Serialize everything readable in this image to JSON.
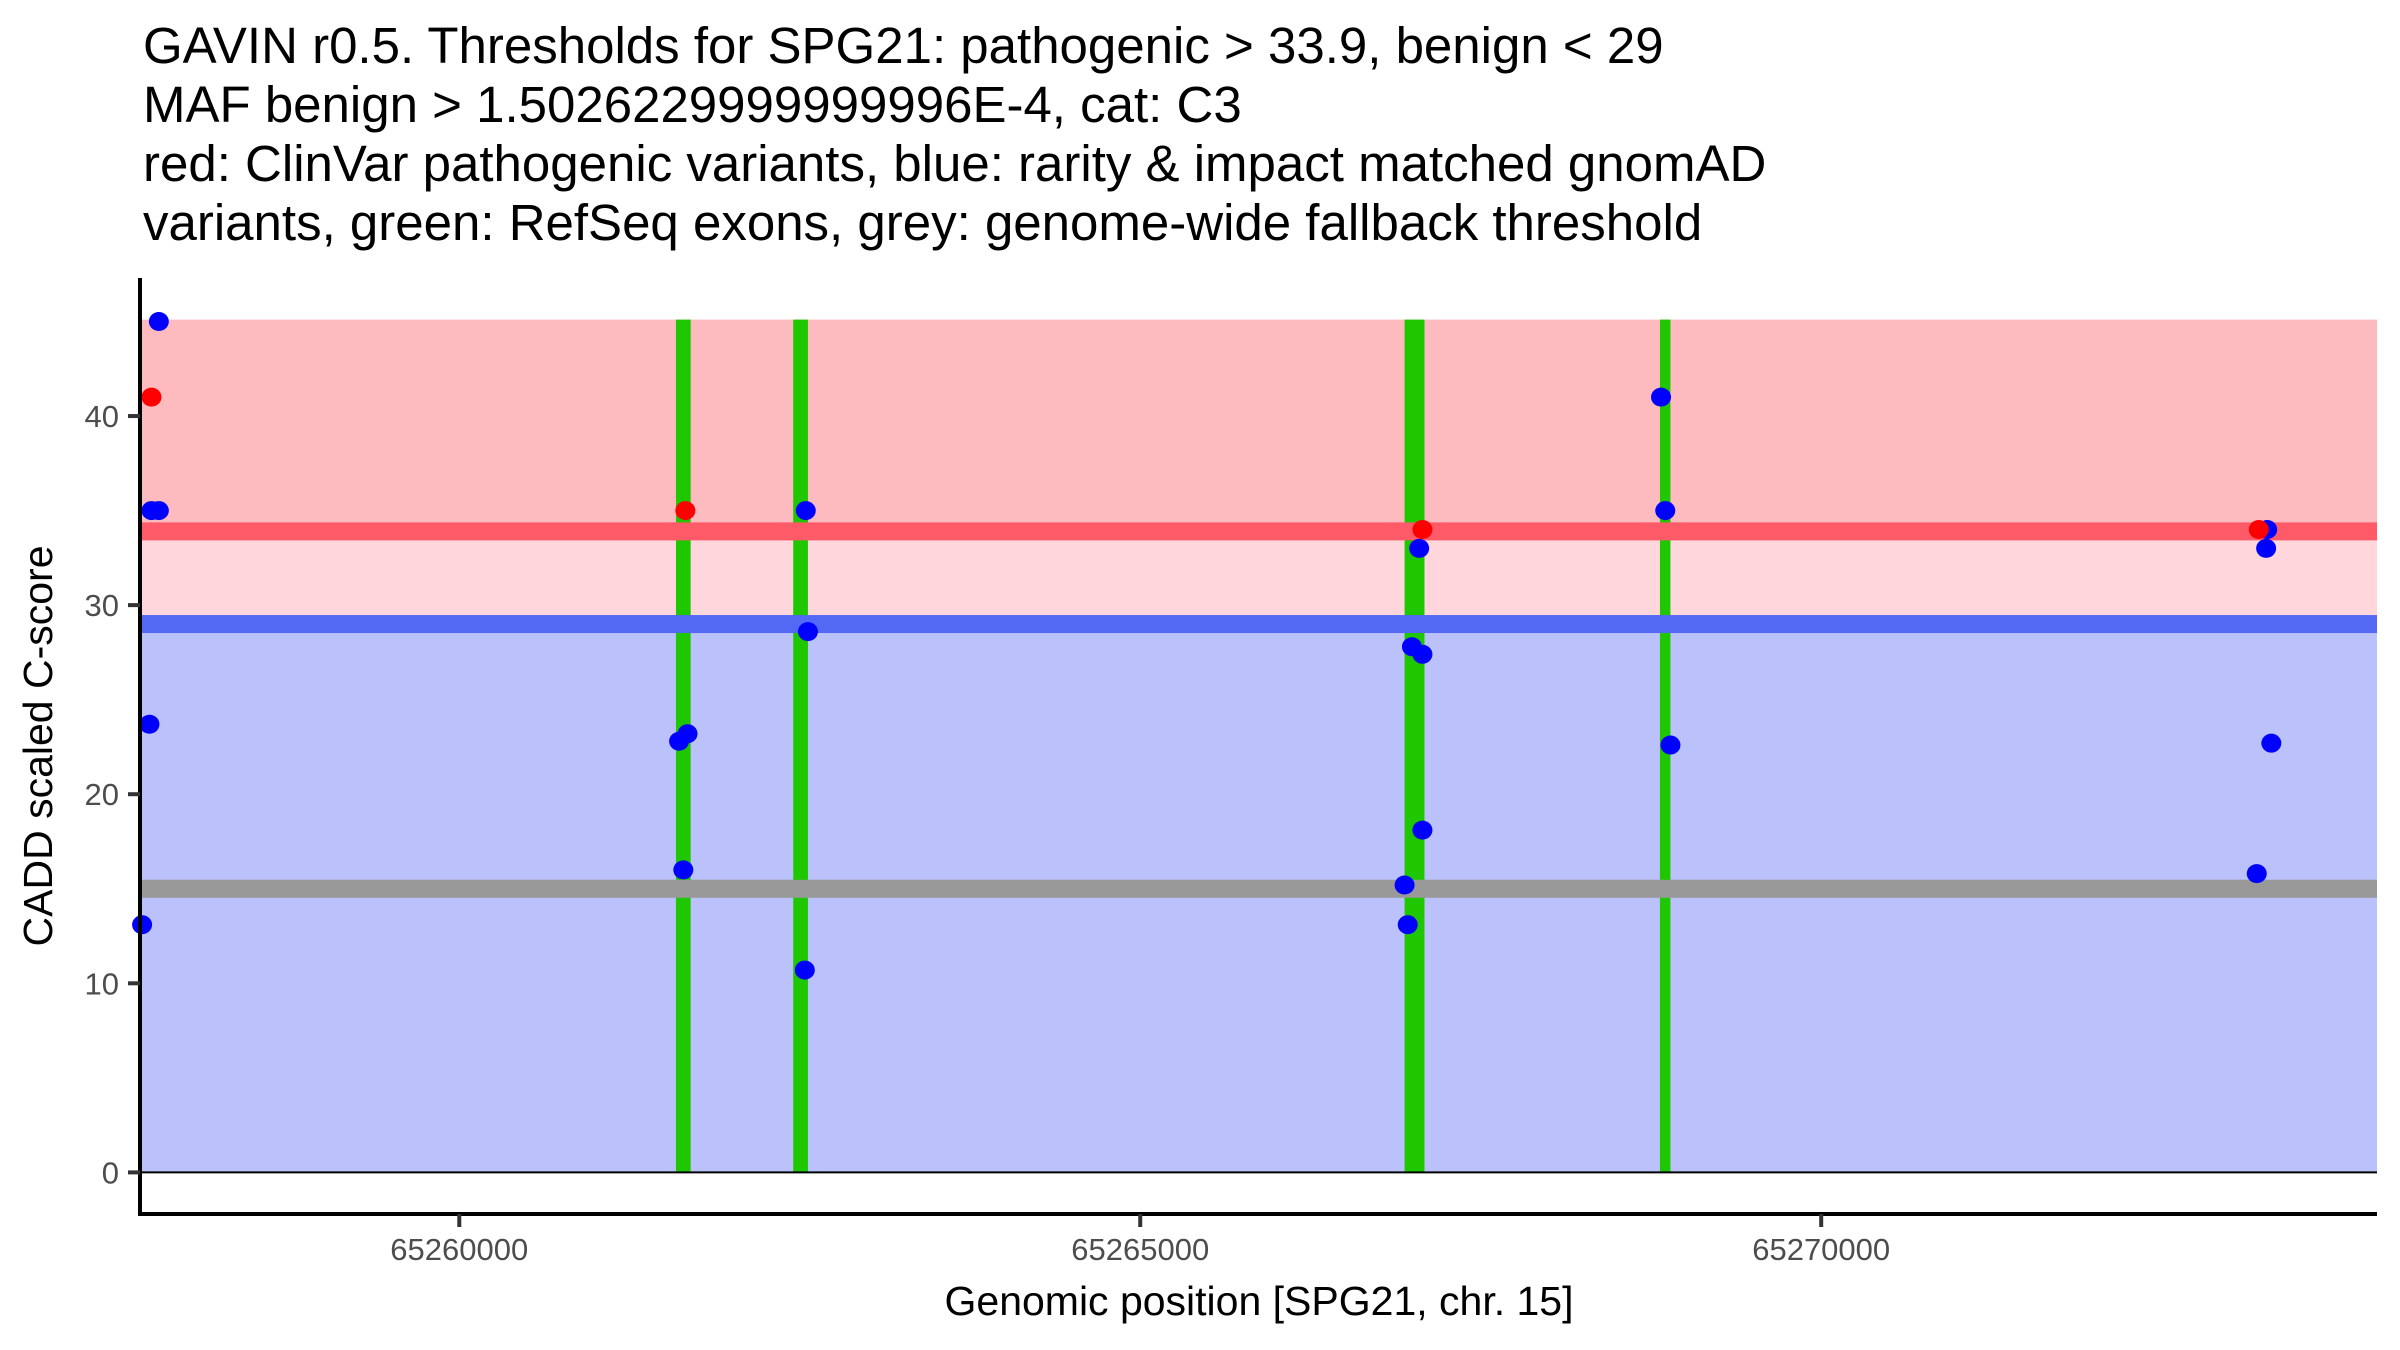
{
  "chart_data": {
    "type": "scatter",
    "title_lines": [
      "GAVIN r0.5. Thresholds for SPG21: pathogenic > 33.9, benign < 29",
      "MAF benign > 1.5026229999999996E-4, cat: C3",
      "red: ClinVar pathogenic variants, blue: rarity & impact matched gnomAD",
      "variants, green: RefSeq exons, grey: genome-wide fallback threshold"
    ],
    "xlabel": "Genomic position [SPG21, chr. 15]",
    "ylabel": "CADD scaled C-score",
    "xlim": [
      65257663,
      65274081
    ],
    "ylim": [
      -2.2,
      47.3
    ],
    "x_ticks": [
      65260000,
      65265000,
      65270000
    ],
    "x_tick_labels": [
      "65260000",
      "65265000",
      "65270000"
    ],
    "y_ticks": [
      0,
      10,
      20,
      30,
      40
    ],
    "y_tick_labels": [
      "0",
      "10",
      "20",
      "30",
      "40"
    ],
    "grid": false,
    "gene": "SPG21",
    "chromosome": "15",
    "thresholds": {
      "pathogenic": 33.9,
      "benign": 29,
      "genome_wide_fallback": 15,
      "maf_benign": "1.5026229999999996E-4",
      "category": "C3"
    },
    "regions": [
      {
        "name": "pathogenic-region",
        "ymin": 33.9,
        "ymax": 45.1,
        "color": "#FDBBC0"
      },
      {
        "name": "intermediate-region",
        "ymin": 29,
        "ymax": 33.9,
        "color": "#FED6DC"
      },
      {
        "name": "benign-region",
        "ymin": 0,
        "ymax": 29,
        "color": "#BBC1FA"
      }
    ],
    "threshold_lines": [
      {
        "name": "pathogenic-threshold-line",
        "y": 33.9,
        "color": "#FF5A68"
      },
      {
        "name": "benign-threshold-line",
        "y": 29,
        "color": "#5369F4"
      },
      {
        "name": "fallback-threshold-line",
        "y": 15,
        "color": "#999999"
      }
    ],
    "exons": [
      {
        "start": 65261591,
        "end": 65261699
      },
      {
        "start": 65262452,
        "end": 65262560
      },
      {
        "start": 65266941,
        "end": 65267087
      },
      {
        "start": 65268816,
        "end": 65268893
      }
    ],
    "exon_color": "#1EC700",
    "exon_ymax": 45.1,
    "series": [
      {
        "name": "gnomAD matched variants",
        "color": "#0000FF",
        "points": [
          {
            "x": 65257794,
            "y": 45.0
          },
          {
            "x": 65257740,
            "y": 35.0
          },
          {
            "x": 65257794,
            "y": 35.0
          },
          {
            "x": 65257725,
            "y": 23.7
          },
          {
            "x": 65257671,
            "y": 13.1
          },
          {
            "x": 65261676,
            "y": 23.2
          },
          {
            "x": 65261614,
            "y": 22.8
          },
          {
            "x": 65261645,
            "y": 16.0
          },
          {
            "x": 65262544,
            "y": 35.0
          },
          {
            "x": 65262560,
            "y": 28.6
          },
          {
            "x": 65262537,
            "y": 10.7
          },
          {
            "x": 65267048,
            "y": 33.0
          },
          {
            "x": 65266995,
            "y": 27.8
          },
          {
            "x": 65267072,
            "y": 27.4
          },
          {
            "x": 65267072,
            "y": 18.1
          },
          {
            "x": 65266941,
            "y": 15.2
          },
          {
            "x": 65266964,
            "y": 13.1
          },
          {
            "x": 65268824,
            "y": 41.0
          },
          {
            "x": 65268855,
            "y": 35.0
          },
          {
            "x": 65268893,
            "y": 22.6
          },
          {
            "x": 65273275,
            "y": 34.0
          },
          {
            "x": 65273267,
            "y": 33.0
          },
          {
            "x": 65273305,
            "y": 22.7
          },
          {
            "x": 65273198,
            "y": 15.8
          }
        ]
      },
      {
        "name": "ClinVar pathogenic variants",
        "color": "#FF0000",
        "points": [
          {
            "x": 65257740,
            "y": 41.0
          },
          {
            "x": 65261660,
            "y": 35.0
          },
          {
            "x": 65267072,
            "y": 34.0
          },
          {
            "x": 65273213,
            "y": 34.0
          }
        ]
      }
    ]
  }
}
